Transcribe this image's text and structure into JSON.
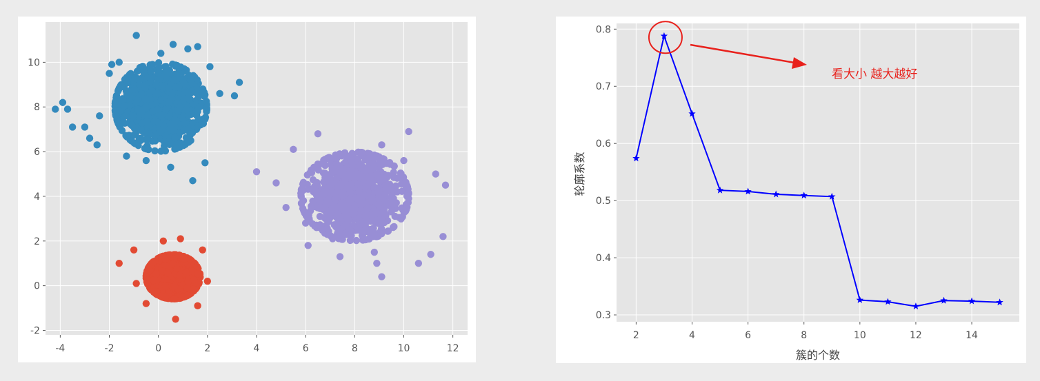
{
  "chart_data": [
    {
      "type": "scatter",
      "title": "",
      "xlabel": "",
      "ylabel": "",
      "xlim": [
        -4.6,
        12.6
      ],
      "ylim": [
        -2.2,
        11.8
      ],
      "xticks": [
        -4,
        -2,
        0,
        2,
        4,
        6,
        8,
        10,
        12
      ],
      "yticks": [
        -2,
        0,
        2,
        4,
        6,
        8,
        10
      ],
      "grid": true,
      "series": [
        {
          "color": "#348abd",
          "center": [
            0.1,
            8.0
          ],
          "spread": [
            0.85,
            0.9
          ],
          "n": 1000,
          "x": [
            -4.2,
            -3.9,
            -3.5,
            -3.7,
            -3.0,
            -2.8,
            -2.5,
            -2.4,
            -1.9,
            -1.6,
            -0.9,
            0.1,
            0.6,
            1.2,
            1.6,
            2.1,
            2.5,
            3.1,
            3.3,
            1.9,
            1.4,
            0.5,
            -0.5,
            -1.3,
            -2.0
          ],
          "y": [
            7.9,
            8.2,
            7.1,
            7.9,
            7.1,
            6.6,
            6.3,
            7.6,
            9.9,
            10.0,
            11.2,
            10.4,
            10.8,
            10.6,
            10.7,
            9.8,
            8.6,
            8.5,
            9.1,
            5.5,
            4.7,
            5.3,
            5.6,
            5.8,
            9.5
          ]
        },
        {
          "color": "#e24a33",
          "center": [
            0.6,
            0.4
          ],
          "spread": [
            0.5,
            0.45
          ],
          "n": 1000,
          "x": [
            -1.6,
            -1.0,
            -0.9,
            1.8,
            2.0,
            0.7,
            0.9,
            1.6,
            -0.5,
            0.2
          ],
          "y": [
            1.0,
            1.6,
            0.1,
            1.6,
            0.2,
            -1.5,
            2.1,
            -0.9,
            -0.8,
            2.0
          ]
        },
        {
          "color": "#988ed5",
          "center": [
            8.0,
            4.0
          ],
          "spread": [
            1.0,
            0.9
          ],
          "n": 1000,
          "x": [
            4.0,
            4.8,
            5.2,
            5.5,
            6.0,
            6.5,
            7.1,
            8.9,
            9.1,
            10.2,
            11.1,
            11.6,
            11.7,
            11.3,
            10.6,
            10.0,
            9.1,
            8.8,
            7.4,
            6.1
          ],
          "y": [
            5.1,
            4.6,
            3.5,
            6.1,
            2.8,
            6.8,
            2.1,
            1.0,
            0.4,
            6.9,
            1.4,
            2.2,
            4.5,
            5.0,
            1.0,
            5.6,
            6.3,
            1.5,
            1.3,
            1.8
          ]
        }
      ]
    },
    {
      "type": "line",
      "title": "",
      "xlabel": "簇的个数",
      "ylabel": "轮廓系数",
      "xlim": [
        1.3,
        15.7
      ],
      "ylim": [
        0.288,
        0.81
      ],
      "xticks": [
        2,
        4,
        6,
        8,
        10,
        12,
        14
      ],
      "yticks": [
        0.3,
        0.4,
        0.5,
        0.6,
        0.7,
        0.8
      ],
      "grid": true,
      "series": [
        {
          "color": "#0000ff",
          "marker": "star",
          "x": [
            2,
            3,
            4,
            5,
            6,
            7,
            8,
            9,
            10,
            11,
            12,
            13,
            14,
            15
          ],
          "y": [
            0.574,
            0.788,
            0.652,
            0.518,
            0.516,
            0.511,
            0.509,
            0.507,
            0.326,
            0.323,
            0.315,
            0.325,
            0.324,
            0.322
          ]
        }
      ],
      "annotation": {
        "text": "看大小 越大越好",
        "color": "#e8211c",
        "highlight_point": [
          3,
          0.788
        ]
      }
    }
  ]
}
